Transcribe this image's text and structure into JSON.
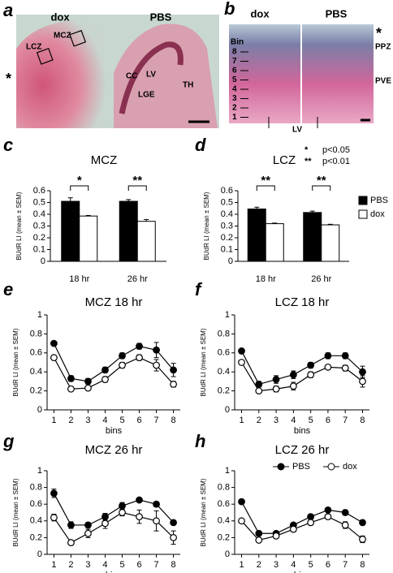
{
  "images": {
    "a": {
      "letter": "a",
      "labels": [
        "dox",
        "PBS",
        "LCZ",
        "MCZ",
        "*",
        "CC",
        "LV",
        "LGE",
        "TH"
      ]
    },
    "b": {
      "letter": "b",
      "labels": [
        "dox",
        "PBS",
        "Bin",
        "*",
        "PPZ",
        "PVE",
        "LV"
      ],
      "bins": [
        "8",
        "7",
        "6",
        "5",
        "4",
        "3",
        "2",
        "1"
      ]
    }
  },
  "chart_data": [
    {
      "type": "bar",
      "panel": "c",
      "title": "MCZ",
      "ylabel": "BUdR LI (mean ± SEM)",
      "categories": [
        "18 hr",
        "26 hr"
      ],
      "series": [
        {
          "name": "PBS",
          "color": "#000000",
          "values": [
            0.51,
            0.51
          ],
          "errors": [
            0.03,
            0.015
          ]
        },
        {
          "name": "dox",
          "color": "#ffffff",
          "values": [
            0.385,
            0.34
          ],
          "errors": [
            0.005,
            0.015
          ]
        }
      ],
      "annotations": [
        "*",
        "**"
      ],
      "ylim": [
        0,
        0.6
      ],
      "yticks": [
        0,
        0.1,
        0.2,
        0.3,
        0.4,
        0.5,
        0.6
      ]
    },
    {
      "type": "bar",
      "panel": "d",
      "title": "LCZ",
      "ylabel": "BUdR LI (mean ± SEM)",
      "categories": [
        "18 hr",
        "26 hr"
      ],
      "series": [
        {
          "name": "PBS",
          "color": "#000000",
          "values": [
            0.445,
            0.415
          ],
          "errors": [
            0.015,
            0.012
          ]
        },
        {
          "name": "dox",
          "color": "#ffffff",
          "values": [
            0.32,
            0.31
          ],
          "errors": [
            0.005,
            0.005
          ]
        }
      ],
      "annotations": [
        "**",
        "**"
      ],
      "notes": [
        {
          "symbol": "*",
          "text": "p<0.05"
        },
        {
          "symbol": "**",
          "text": "p<0.01"
        }
      ],
      "legend": "right",
      "ylim": [
        0,
        0.6
      ],
      "yticks": [
        0,
        0.1,
        0.2,
        0.3,
        0.4,
        0.5,
        0.6
      ]
    },
    {
      "type": "line",
      "panel": "e",
      "title": "MCZ 18 hr",
      "ylabel": "BUdR LI (mean ± SEM)",
      "xlabel": "bins",
      "x": [
        1,
        2,
        3,
        4,
        5,
        6,
        7,
        8
      ],
      "series": [
        {
          "name": "PBS",
          "color": "#000000",
          "values": [
            0.7,
            0.33,
            0.3,
            0.42,
            0.57,
            0.67,
            0.63,
            0.42
          ],
          "errors": [
            0.02,
            0.03,
            0.03,
            0.03,
            0.03,
            0.03,
            0.08,
            0.07
          ]
        },
        {
          "name": "dox",
          "color": "#ffffff",
          "values": [
            0.55,
            0.22,
            0.23,
            0.32,
            0.47,
            0.55,
            0.47,
            0.27
          ],
          "errors": [
            0.02,
            0.02,
            0.02,
            0.03,
            0.03,
            0.03,
            0.06,
            0.03
          ]
        }
      ],
      "xlim": [
        0.6,
        8.4
      ],
      "xticks": [
        1,
        2,
        3,
        4,
        5,
        6,
        7,
        8
      ],
      "ylim": [
        0,
        1
      ],
      "yticks": [
        0,
        0.2,
        0.4,
        0.6,
        0.8,
        1
      ]
    },
    {
      "type": "line",
      "panel": "f",
      "title": "LCZ 18 hr",
      "ylabel": "BUdR LI (mean ± SEM)",
      "xlabel": "bins",
      "x": [
        1,
        2,
        3,
        4,
        5,
        6,
        7,
        8
      ],
      "series": [
        {
          "name": "PBS",
          "color": "#000000",
          "values": [
            0.62,
            0.27,
            0.32,
            0.37,
            0.47,
            0.57,
            0.57,
            0.4
          ],
          "errors": [
            0.02,
            0.03,
            0.04,
            0.04,
            0.03,
            0.03,
            0.03,
            0.06
          ]
        },
        {
          "name": "dox",
          "color": "#ffffff",
          "values": [
            0.5,
            0.2,
            0.22,
            0.25,
            0.37,
            0.45,
            0.44,
            0.3
          ],
          "errors": [
            0.02,
            0.02,
            0.03,
            0.04,
            0.03,
            0.02,
            0.03,
            0.06
          ]
        }
      ],
      "xlim": [
        0.6,
        8.4
      ],
      "xticks": [
        1,
        2,
        3,
        4,
        5,
        6,
        7,
        8
      ],
      "ylim": [
        0,
        1
      ],
      "yticks": [
        0,
        0.2,
        0.4,
        0.6,
        0.8,
        1
      ]
    },
    {
      "type": "line",
      "panel": "g",
      "title": "MCZ 26 hr",
      "ylabel": "BUdR LI (mean ± SEM)",
      "xlabel": "bins",
      "x": [
        1,
        2,
        3,
        4,
        5,
        6,
        7,
        8
      ],
      "series": [
        {
          "name": "PBS",
          "color": "#000000",
          "values": [
            0.73,
            0.35,
            0.35,
            0.45,
            0.58,
            0.65,
            0.6,
            0.38
          ],
          "errors": [
            0.05,
            0.04,
            0.03,
            0.04,
            0.04,
            0.02,
            0.03,
            0.02
          ]
        },
        {
          "name": "dox",
          "color": "#ffffff",
          "values": [
            0.44,
            0.14,
            0.25,
            0.37,
            0.5,
            0.45,
            0.4,
            0.2
          ],
          "errors": [
            0.04,
            0.02,
            0.05,
            0.06,
            0.04,
            0.08,
            0.12,
            0.08
          ]
        }
      ],
      "xlim": [
        0.6,
        8.4
      ],
      "xticks": [
        1,
        2,
        3,
        4,
        5,
        6,
        7,
        8
      ],
      "ylim": [
        0,
        1
      ],
      "yticks": [
        0,
        0.2,
        0.4,
        0.6,
        0.8,
        1
      ]
    },
    {
      "type": "line",
      "panel": "h",
      "title": "LCZ 26 hr",
      "ylabel": "BUdR LI (mean ± SEM)",
      "xlabel": "bins",
      "x": [
        1,
        2,
        3,
        4,
        5,
        6,
        7,
        8
      ],
      "series": [
        {
          "name": "PBS",
          "color": "#000000",
          "values": [
            0.63,
            0.25,
            0.25,
            0.35,
            0.45,
            0.53,
            0.5,
            0.38
          ],
          "errors": [
            0.02,
            0.02,
            0.02,
            0.02,
            0.02,
            0.02,
            0.03,
            0.03
          ]
        },
        {
          "name": "dox",
          "color": "#ffffff",
          "values": [
            0.4,
            0.17,
            0.22,
            0.3,
            0.38,
            0.45,
            0.35,
            0.18
          ],
          "errors": [
            0.02,
            0.02,
            0.03,
            0.03,
            0.03,
            0.03,
            0.04,
            0.04
          ]
        }
      ],
      "legend": "top",
      "xlim": [
        0.6,
        8.4
      ],
      "xticks": [
        1,
        2,
        3,
        4,
        5,
        6,
        7,
        8
      ],
      "ylim": [
        0,
        1
      ],
      "yticks": [
        0,
        0.2,
        0.4,
        0.6,
        0.8,
        1
      ]
    }
  ]
}
